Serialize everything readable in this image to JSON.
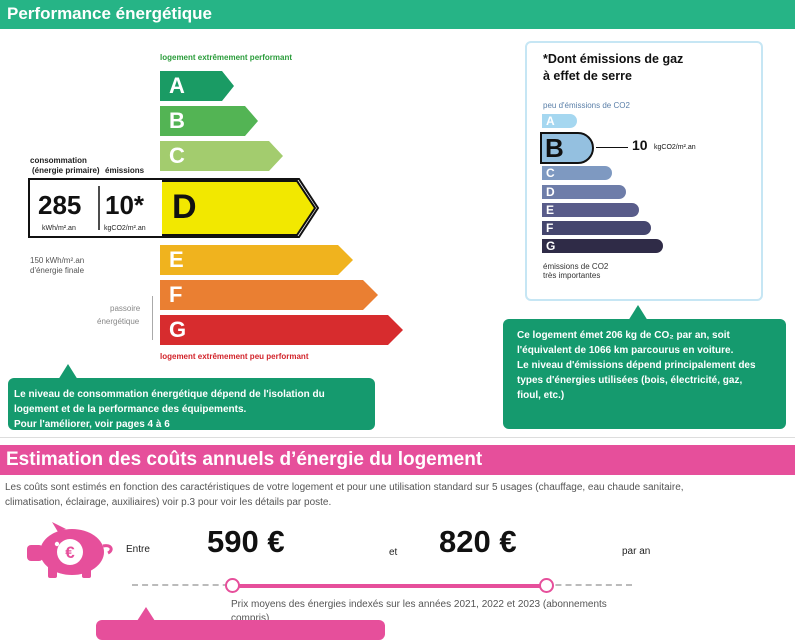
{
  "performance": {
    "header": "Performance énergétique",
    "top_label": "logement extrêmement performant",
    "bottom_label": "logement extrêmement peu performant",
    "grades": [
      "A",
      "B",
      "C",
      "D",
      "E",
      "F",
      "G"
    ],
    "grade_colors": [
      "#1a9b64",
      "#53b454",
      "#a3cc6e",
      "#f2e800",
      "#f0b31e",
      "#ea7f32",
      "#d72c2e"
    ],
    "current_grade": "D",
    "consumption_label_line1": "consommation",
    "consumption_label_line2": "(énergie primaire)",
    "emissions_label": "émissions",
    "consumption_value": "285",
    "consumption_unit": "kWh/m².an",
    "emissions_value": "10*",
    "emissions_unit": "kgCO2/m².an",
    "final_energy_line1": "150 kWh/m².an",
    "final_energy_line2": "d'énergie finale",
    "passoire_line1": "passoire",
    "passoire_line2": "énergétique",
    "tip_line1": "Le niveau de consommation énergétique dépend de l'isolation du",
    "tip_line2": "logement et de la performance des équipements.",
    "tip_line3": "Pour l'améliorer, voir pages 4 à 6"
  },
  "ges": {
    "title_line1": "*Dont émissions de gaz",
    "title_line2": "à effet de serre",
    "top_label": "peu d'émissions de CO2",
    "grades": [
      "A",
      "B",
      "C",
      "D",
      "E",
      "F",
      "G"
    ],
    "grade_colors": [
      "#a5d7f0",
      "#94c0e0",
      "#7e99c1",
      "#6e7da9",
      "#595c8a",
      "#45466e",
      "#2f2b47"
    ],
    "current_grade": "B",
    "value": "10",
    "unit": "kgCO2/m².an",
    "bottom_line1": "émissions de CO2",
    "bottom_line2": "très importantes",
    "tip_line1": "Ce logement émet 206 kg de CO₂ par an, soit",
    "tip_line2": "l'équivalent de 1066  km parcourus en voiture.",
    "tip_line3": "Le niveau d'émissions dépend principalement des",
    "tip_line4": "types d'énergies utilisées (bois, électricité, gaz,",
    "tip_line5": "fioul, etc.)"
  },
  "costs": {
    "header": "Estimation des coûts annuels d’énergie du logement",
    "desc_line1": "Les coûts sont estimés en fonction des caractéristiques de votre logement et pour une utilisation standard sur 5 usages (chauffage, eau chaude sanitaire,",
    "desc_line2": "climatisation, éclairage, auxiliaires) voir p.3 pour voir les détails par poste.",
    "between": "Entre",
    "min_price": "590 €",
    "and": "et",
    "max_price": "820 €",
    "per_year": "par an",
    "index_note_line1": "Prix moyens des énergies indexés sur les années 2021, 2022 et 2023 (abonnements",
    "index_note_line2": "compris)",
    "accent_color": "#e64f9b"
  }
}
